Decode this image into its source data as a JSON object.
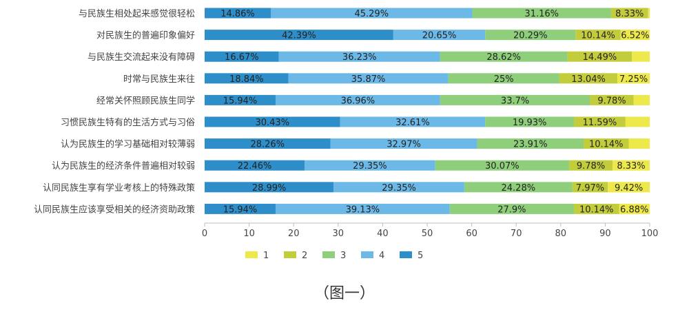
{
  "caption": "（图一）",
  "chart_data": {
    "type": "bar",
    "orientation": "horizontal",
    "stacked": true,
    "xlim": [
      0,
      100
    ],
    "xticks": [
      0,
      10,
      20,
      30,
      40,
      50,
      60,
      70,
      80,
      90,
      100
    ],
    "legend_position": "bottom",
    "categories": [
      "与民族生相处起来感觉很轻松",
      "对民族生的普遍印象偏好",
      "与民族生交流起来没有障碍",
      "时常与民族生来往",
      "经常关怀照顾民族生同学",
      "习惯民族生特有的生活方式与习俗",
      "认为民族生的学习基础相对较薄弱",
      "认为民族生的经济条件普遍相对较弱",
      "认同民族生享有学业考核上的特殊政策",
      "认同民族生应该享受相关的经济资助政策"
    ],
    "series": [
      {
        "name": "5",
        "color": "#2e8ec9",
        "values": [
          14.86,
          42.39,
          16.67,
          18.84,
          15.94,
          30.43,
          28.26,
          22.46,
          28.99,
          15.94
        ]
      },
      {
        "name": "4",
        "color": "#6cb8e6",
        "values": [
          45.29,
          20.65,
          36.23,
          35.87,
          36.96,
          32.61,
          32.97,
          29.35,
          29.35,
          39.13
        ]
      },
      {
        "name": "3",
        "color": "#8fcf7c",
        "values": [
          31.16,
          20.29,
          28.62,
          25,
          33.7,
          19.93,
          23.91,
          30.07,
          24.28,
          27.9
        ]
      },
      {
        "name": "2",
        "color": "#c3cc3b",
        "values": [
          8.33,
          10.14,
          14.49,
          13.04,
          9.78,
          11.59,
          10.14,
          9.78,
          7.97,
          10.14
        ]
      },
      {
        "name": "1",
        "color": "#eee94a",
        "values": [
          0.36,
          6.52,
          3.99,
          7.25,
          3.62,
          5.44,
          4.72,
          8.33,
          9.42,
          6.88
        ]
      }
    ],
    "labels": [
      [
        "14.86%",
        "45.29%",
        "31.16%",
        "8.33%",
        ""
      ],
      [
        "42.39%",
        "20.65%",
        "20.29%",
        "10.14%",
        "6.52%"
      ],
      [
        "16.67%",
        "36.23%",
        "28.62%",
        "14.49%",
        ""
      ],
      [
        "18.84%",
        "35.87%",
        "25%",
        "13.04%",
        "7.25%"
      ],
      [
        "15.94%",
        "36.96%",
        "33.7%",
        "9.78%",
        ""
      ],
      [
        "30.43%",
        "32.61%",
        "19.93%",
        "11.59%",
        ""
      ],
      [
        "28.26%",
        "32.97%",
        "23.91%",
        "10.14%",
        ""
      ],
      [
        "22.46%",
        "29.35%",
        "30.07%",
        "9.78%",
        "8.33%"
      ],
      [
        "28.99%",
        "29.35%",
        "24.28%",
        "7.97%",
        "9.42%"
      ],
      [
        "15.94%",
        "39.13%",
        "27.9%",
        "10.14%",
        "6.88%"
      ]
    ],
    "legend": [
      {
        "label": "1",
        "color": "#eee94a"
      },
      {
        "label": "2",
        "color": "#c3cc3b"
      },
      {
        "label": "3",
        "color": "#8fcf7c"
      },
      {
        "label": "4",
        "color": "#6cb8e6"
      },
      {
        "label": "5",
        "color": "#2e8ec9"
      }
    ]
  }
}
